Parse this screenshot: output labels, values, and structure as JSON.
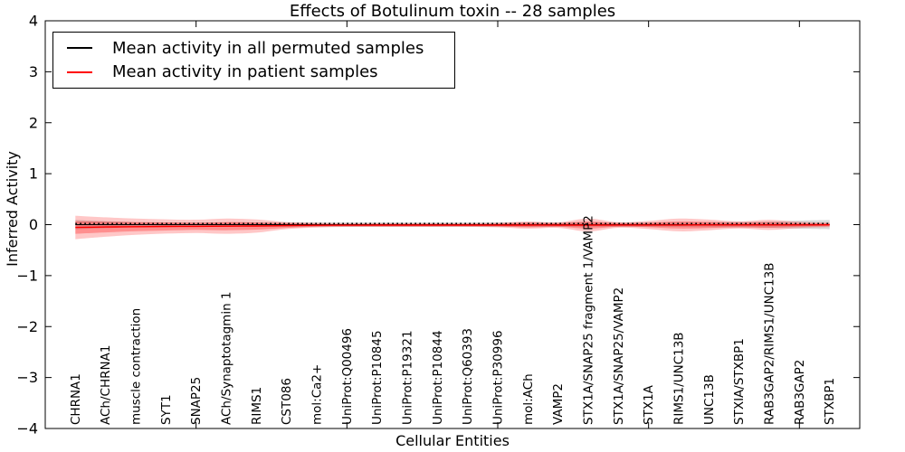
{
  "title": "Effects of Botulinum toxin -- 28 samples",
  "legend": {
    "entries": [
      {
        "label": "Mean activity in all permuted samples",
        "color": "#000000"
      },
      {
        "label": "Mean activity in patient samples",
        "color": "#ff0000"
      }
    ]
  },
  "chart_data": {
    "type": "line",
    "title": "Effects of Botulinum toxin -- 28 samples",
    "xlabel": "Cellular Entities",
    "ylabel": "Inferred Activity",
    "ylim": [
      -4,
      4
    ],
    "yticks": [
      4,
      3,
      2,
      1,
      0,
      -1,
      -2,
      -3,
      -4
    ],
    "xtick_indices": [
      4,
      9,
      14,
      19,
      24
    ],
    "grid": false,
    "legend_position": "upper left",
    "categories": [
      "CHRNA1",
      "ACh/CHRNA1",
      "muscle contraction",
      "SYT1",
      "SNAP25",
      "ACh/Synaptotagmin 1",
      "RIMS1",
      "CST086",
      "mol:Ca2+",
      "UniProt:Q00496",
      "UniProt:P10845",
      "UniProt:P19321",
      "UniProt:P10844",
      "UniProt:Q60393",
      "UniProt:P30996",
      "mol:ACh",
      "VAMP2",
      "STX1A/SNAP25 fragment 1/VAMP2",
      "STX1A/SNAP25/VAMP2",
      "STX1A",
      "RIMS1/UNC13B",
      "UNC13B",
      "STXIA/STXBP1",
      "RAB3GAP2/RIMS1/UNC13B",
      "RAB3GAP2",
      "STXBP1"
    ],
    "series": [
      {
        "name": "Mean activity in all permuted samples",
        "color": "#000000",
        "line_style": "solid-with-dots",
        "values": [
          0,
          0,
          0,
          0,
          0,
          0,
          0,
          0,
          0,
          0,
          0,
          0,
          0,
          0,
          0,
          0,
          0,
          0,
          0,
          0,
          0,
          0,
          0,
          0,
          0,
          0
        ],
        "band_halfwidth": [
          0.09,
          0.07,
          0.05,
          0.045,
          0.045,
          0.045,
          0.045,
          0.045,
          0.045,
          0.045,
          0.045,
          0.045,
          0.045,
          0.045,
          0.045,
          0.045,
          0.045,
          0.045,
          0.045,
          0.045,
          0.045,
          0.05,
          0.055,
          0.06,
          0.08,
          0.09
        ],
        "band_color": "#000000",
        "band_alpha": 0.15
      },
      {
        "name": "Mean activity in patient samples",
        "color": "#ff0000",
        "line_style": "solid",
        "values": [
          -0.055,
          -0.047,
          -0.04,
          -0.036,
          -0.033,
          -0.03,
          -0.027,
          -0.018,
          -0.012,
          -0.01,
          -0.009,
          -0.009,
          -0.009,
          -0.009,
          -0.009,
          -0.008,
          -0.008,
          -0.008,
          -0.007,
          -0.007,
          -0.007,
          -0.006,
          -0.006,
          -0.005,
          -0.005,
          -0.004
        ],
        "band_outer_halfwidth": [
          0.23,
          0.19,
          0.16,
          0.14,
          0.13,
          0.15,
          0.13,
          0.07,
          0.045,
          0.035,
          0.035,
          0.035,
          0.035,
          0.035,
          0.045,
          0.07,
          0.055,
          0.125,
          0.055,
          0.08,
          0.125,
          0.105,
          0.07,
          0.1,
          0.06,
          0.045
        ],
        "band_inner_halfwidth": [
          0.125,
          0.105,
          0.09,
          0.08,
          0.07,
          0.08,
          0.07,
          0.045,
          0.027,
          0.021,
          0.021,
          0.021,
          0.021,
          0.021,
          0.027,
          0.045,
          0.035,
          0.07,
          0.035,
          0.045,
          0.07,
          0.06,
          0.045,
          0.055,
          0.035,
          0.027
        ],
        "band_color": "#ff0000",
        "band_outer_alpha": 0.22,
        "band_inner_alpha": 0.28
      }
    ]
  }
}
